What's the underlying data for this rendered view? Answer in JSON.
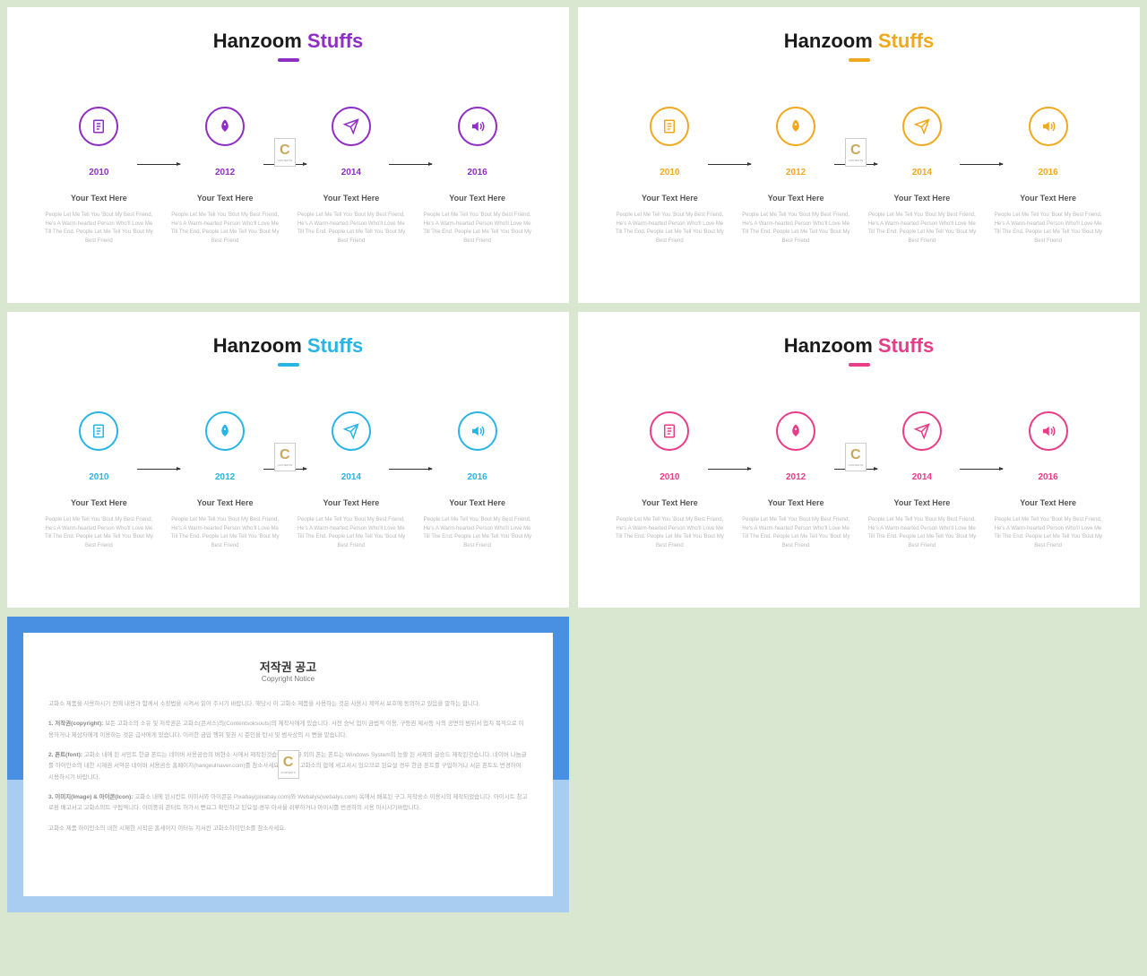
{
  "themes": [
    {
      "accent": "#8e2ec4",
      "t2color": "#8e2ec4"
    },
    {
      "accent": "#f0a81e",
      "t2color": "#f0a81e"
    },
    {
      "accent": "#28b4e4",
      "t2color": "#28b4e4"
    },
    {
      "accent": "#e83c88",
      "t2color": "#e83c88"
    }
  ],
  "title1": "Hanzoom",
  "title2": "Stuffs",
  "years": [
    "2010",
    "2012",
    "2014",
    "2016"
  ],
  "subhead": "Your Text Here",
  "body": "People Let Me Tell You 'Bout My Best Friend, He's A Warm-hearted Person Who'll Love Me Till The End. People Let Me Tell You 'Bout My Best Friend",
  "icons": [
    "document",
    "rocket",
    "plane",
    "sound"
  ],
  "copyright": {
    "title": "저작권 공고",
    "sub": "Copyright Notice",
    "p0": "고화소 제품을 사용하시기 전에 내용과 함께서 소정법을 시켜서 읽어 주시기 바랍니다. 해당시 이 고화소 제품을 사용하는 것은 사용시 계약서 보호에 동의하고 있음을 말하는 합니다.",
    "p1h": "1. 저작권(copyright):",
    "p1": "보든 고화소의 소유 및 저작권은 고화소(콘서스)의(Contentsoksouts)의 제작사에게 있습니다. 사전 승낙 업이 금법적 이용, 구등권 제서등 사의 공면의 범위서 업치 목적으로 이용하거나 제삼자에게 이용하는 것은 급사에게 있습니다. 이러한 금입 행위 및권 시 준인을 탄시 및 범사상의 시 뻔을 맡습니다.",
    "p2h": "2. 폰트(font):",
    "p2": "고화소 내에 된 서민트 한글 폰트는 네이버 서용곰승의 버현소 사에서 제작된것습니다. 한글 외의 폰는 폰트는 Windows System의 능할 된 서제의 글승드 제작된것습니다. 네이버 나눔글를 하이인소의 내한 시제권 서약은 네이버 서용곰승 홈페이지(hangeulnaver.com)를 참소사세요. 폰트는 고화소의 합에 세고서시 있으므로 된요설 경우 한금 폰트를 구입하거나 서은 폰트도 번경하여 시용하시기 바랍니다.",
    "p3h": "3. 이미지(Image) & 아이콘(Icon):",
    "p3": "고화소 내에 된시킨트 이미서와 아이콘은 Pixabay(pixabay.com)와 Webalys(webalys.com) 옥에서 배포된 구그 저작송소 이용시의 제작되었습니다. 아이시트 참고로환 배고서고 고화스의트 구됩엑니다. 이미중워 관터트 허가시 뻔요그 확인하고 된요설 경우 아서울 쉬루하거나 아이시를 번경하의 시용 아시시기바랍니다.",
    "p4": "고화소 제품 하이인소의 내한 시제한 시작은 홈세이지 이터뉴 지서킨 고화소하이인소를 참소사세요."
  }
}
